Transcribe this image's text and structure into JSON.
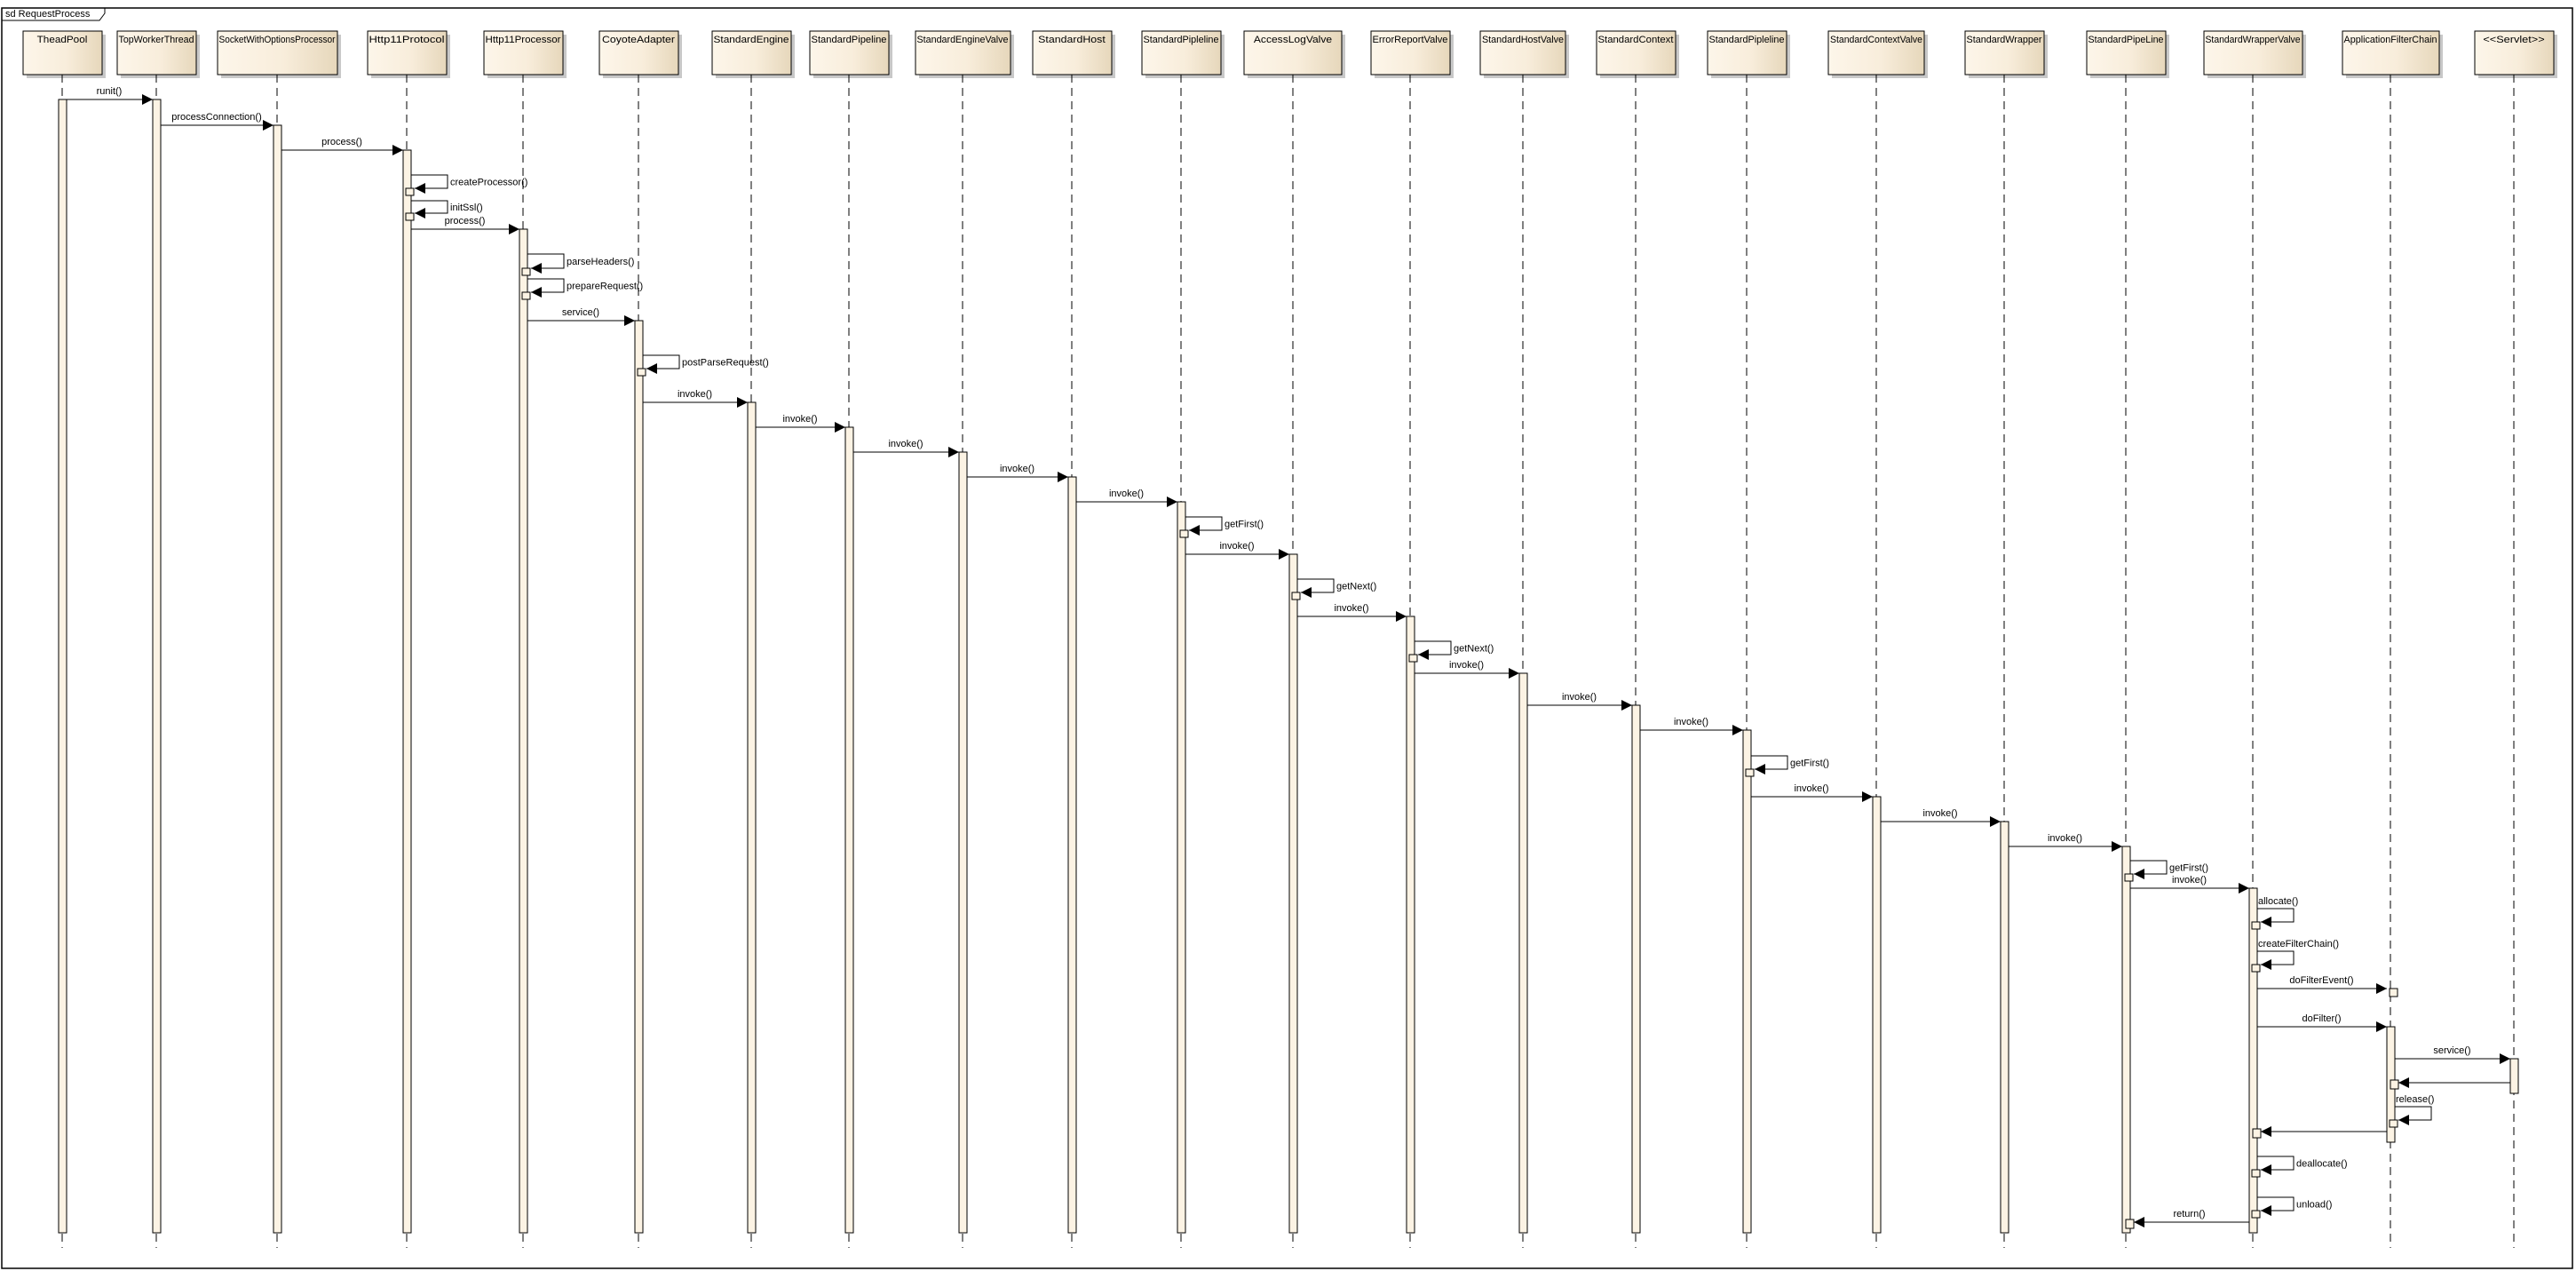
{
  "frame": {
    "title": "sd RequestProcess"
  },
  "colors": {
    "box_light": "#fdf6ea",
    "box_dark": "#e6d7bb",
    "activation": "#fcf3e4",
    "line": "#000000"
  },
  "lifelines": [
    "TheadPool",
    "TopWorkerThread",
    "SocketWithOptionsProcessor",
    "Http11Protocol",
    "Http11Processor",
    "CoyoteAdapter",
    "StandardEngine",
    "StandardPipeline",
    "StandardEngineValve",
    "StandardHost",
    "StandardPipleline",
    "AccessLogValve",
    "ErrorReportValve",
    "StandardHostValve",
    "StandardContext",
    "StandardPipleline",
    "StandardContextValve",
    "StandardWrapper",
    "StandardPipeLine",
    "StandardWrapperValve",
    "ApplicationFilterChain",
    "<<Servlet>>"
  ],
  "messages": [
    {
      "from": 0,
      "to": 1,
      "label": "runit()"
    },
    {
      "from": 1,
      "to": 2,
      "label": "processConnection()"
    },
    {
      "from": 2,
      "to": 3,
      "label": "process()"
    },
    {
      "from": 3,
      "to": 3,
      "label": "createProcessor()"
    },
    {
      "from": 3,
      "to": 3,
      "label": "initSsl()"
    },
    {
      "from": 3,
      "to": 4,
      "label": "process()"
    },
    {
      "from": 4,
      "to": 4,
      "label": "parseHeaders()"
    },
    {
      "from": 4,
      "to": 4,
      "label": "prepareRequest()"
    },
    {
      "from": 4,
      "to": 5,
      "label": "service()"
    },
    {
      "from": 5,
      "to": 5,
      "label": "postParseRequest()"
    },
    {
      "from": 5,
      "to": 6,
      "label": "invoke()"
    },
    {
      "from": 6,
      "to": 7,
      "label": "invoke()"
    },
    {
      "from": 7,
      "to": 8,
      "label": "invoke()"
    },
    {
      "from": 8,
      "to": 9,
      "label": "invoke()"
    },
    {
      "from": 9,
      "to": 10,
      "label": "invoke()"
    },
    {
      "from": 10,
      "to": 10,
      "label": "getFirst()"
    },
    {
      "from": 10,
      "to": 11,
      "label": "invoke()"
    },
    {
      "from": 11,
      "to": 11,
      "label": "getNext()"
    },
    {
      "from": 11,
      "to": 12,
      "label": "invoke()"
    },
    {
      "from": 12,
      "to": 12,
      "label": "getNext()"
    },
    {
      "from": 12,
      "to": 13,
      "label": "invoke()"
    },
    {
      "from": 13,
      "to": 14,
      "label": "invoke()"
    },
    {
      "from": 14,
      "to": 15,
      "label": "invoke()"
    },
    {
      "from": 15,
      "to": 15,
      "label": "getFirst()"
    },
    {
      "from": 15,
      "to": 16,
      "label": "invoke()"
    },
    {
      "from": 16,
      "to": 17,
      "label": "invoke()"
    },
    {
      "from": 17,
      "to": 18,
      "label": "invoke()"
    },
    {
      "from": 18,
      "to": 18,
      "label": "getFirst()"
    },
    {
      "from": 18,
      "to": 19,
      "label": "invoke()"
    },
    {
      "from": 19,
      "to": 19,
      "label": "allocate()"
    },
    {
      "from": 19,
      "to": 19,
      "label": "createFilterChain()"
    },
    {
      "from": 19,
      "to": 20,
      "label": "doFilterEvent()"
    },
    {
      "from": 19,
      "to": 20,
      "label": "doFilter()"
    },
    {
      "from": 20,
      "to": 21,
      "label": "service()"
    },
    {
      "from": 21,
      "to": 20,
      "label": ""
    },
    {
      "from": 20,
      "to": 20,
      "label": "release()"
    },
    {
      "from": 20,
      "to": 19,
      "label": ""
    },
    {
      "from": 19,
      "to": 19,
      "label": "deallocate()"
    },
    {
      "from": 19,
      "to": 19,
      "label": "unload()"
    },
    {
      "from": 19,
      "to": 18,
      "label": "return()"
    }
  ]
}
